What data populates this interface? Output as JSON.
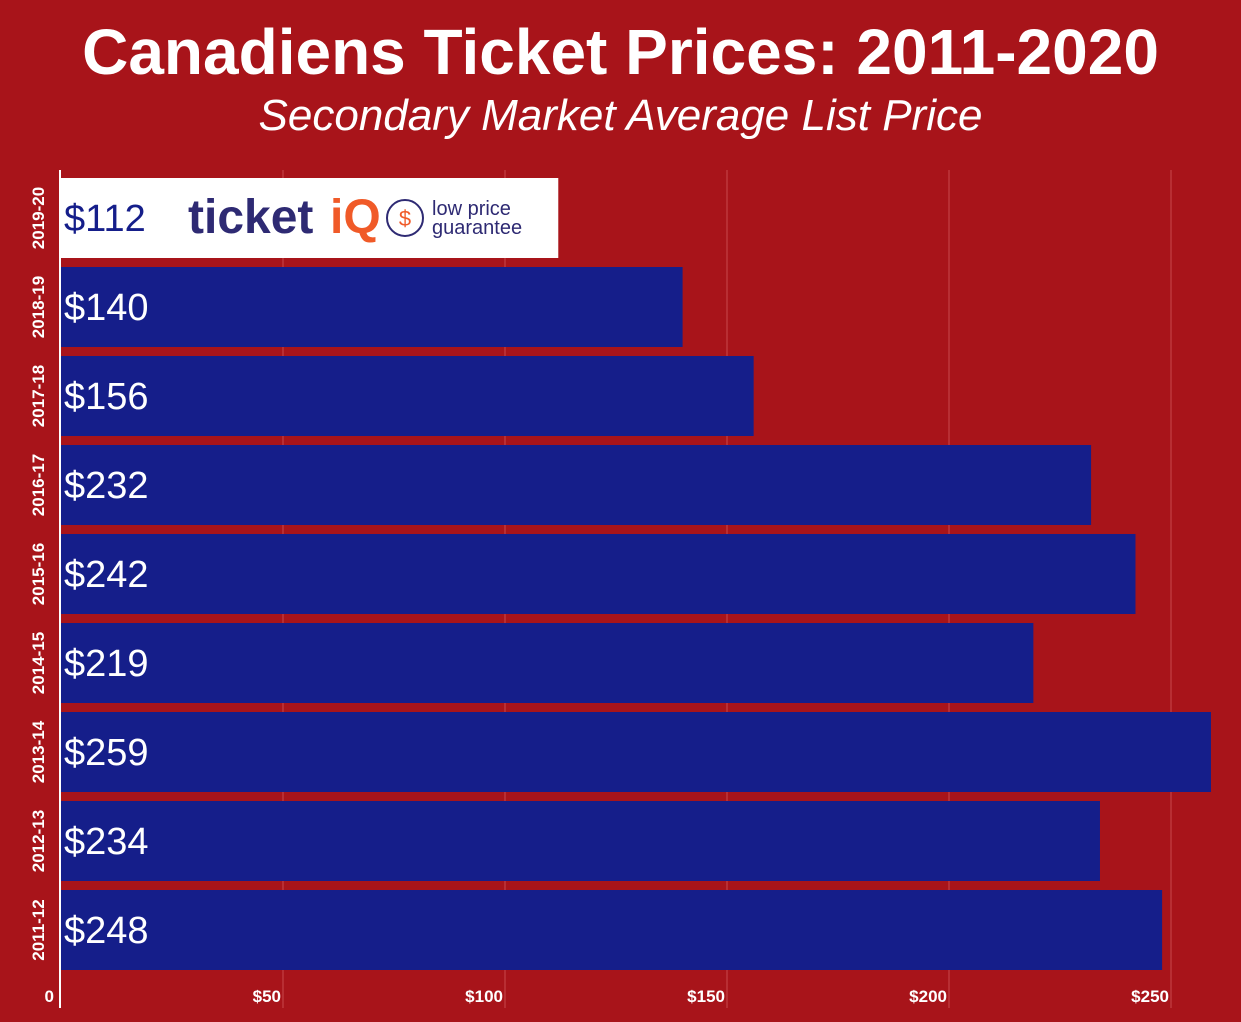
{
  "chart_data": {
    "type": "bar",
    "orientation": "horizontal",
    "title": "Canadiens Ticket Prices: 2011-2020",
    "subtitle": "Secondary Market Average List Price",
    "categories": [
      "2019-20",
      "2018-19",
      "2017-18",
      "2016-17",
      "2015-16",
      "2014-15",
      "2013-14",
      "2012-13",
      "2011-12"
    ],
    "values": [
      112,
      140,
      156,
      232,
      242,
      219,
      259,
      234,
      248
    ],
    "data_labels": [
      "$112",
      "$140",
      "$156",
      "$232",
      "$242",
      "$219",
      "$259",
      "$234",
      "$248"
    ],
    "xlim": [
      0,
      265
    ],
    "x_ticks": [
      0,
      50,
      100,
      150,
      200,
      250
    ],
    "x_tick_labels": [
      "0",
      "$50",
      "$100",
      "$150",
      "$200",
      "$250"
    ],
    "grid": true,
    "colors": {
      "background": "#a8141a",
      "bar": "#151e8a",
      "highlight_bar": "#ffffff",
      "highlight_text": "#151e8a"
    }
  },
  "logo": {
    "brand": "ticketiQ",
    "tagline_line1": "low price",
    "tagline_line2": "guarantee",
    "brand_color": "#2e2a73",
    "accent_color": "#f05a28"
  }
}
